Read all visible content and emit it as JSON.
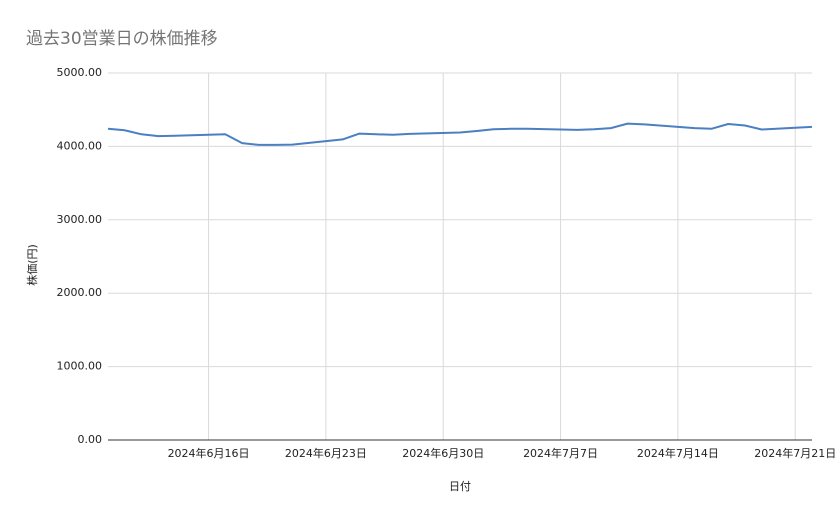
{
  "chart_data": {
    "type": "line",
    "title": "過去30営業日の株価推移",
    "x_label": "日付",
    "y_label": "株価(円)",
    "x": [
      "2024-06-10",
      "2024-06-11",
      "2024-06-12",
      "2024-06-13",
      "2024-06-14",
      "2024-06-17",
      "2024-06-18",
      "2024-06-19",
      "2024-06-20",
      "2024-06-21",
      "2024-06-24",
      "2024-06-25",
      "2024-06-26",
      "2024-06-27",
      "2024-06-28",
      "2024-07-01",
      "2024-07-02",
      "2024-07-03",
      "2024-07-04",
      "2024-07-05",
      "2024-07-08",
      "2024-07-09",
      "2024-07-10",
      "2024-07-11",
      "2024-07-12",
      "2024-07-15",
      "2024-07-16",
      "2024-07-17",
      "2024-07-18",
      "2024-07-19",
      "2024-07-22"
    ],
    "series": [
      {
        "name": "株価",
        "color": "#4a7fc1",
        "values": [
          4240,
          4220,
          4165,
          4140,
          4145,
          4165,
          4045,
          4020,
          4020,
          4025,
          4095,
          4175,
          4165,
          4160,
          4170,
          4190,
          4210,
          4235,
          4240,
          4240,
          4225,
          4235,
          4250,
          4310,
          4300,
          4250,
          4240,
          4305,
          4285,
          4230,
          4265
        ]
      }
    ],
    "xlim": [
      "2024-06-10",
      "2024-07-22"
    ],
    "xticks": [
      {
        "value": "2024-06-16",
        "label": "2024年6月16日"
      },
      {
        "value": "2024-06-23",
        "label": "2024年6月23日"
      },
      {
        "value": "2024-06-30",
        "label": "2024年6月30日"
      },
      {
        "value": "2024-07-07",
        "label": "2024年7月7日"
      },
      {
        "value": "2024-07-14",
        "label": "2024年7月14日"
      },
      {
        "value": "2024-07-21",
        "label": "2024年7月21日"
      }
    ],
    "ylim": [
      0,
      5000
    ],
    "yticks": [
      {
        "value": 0,
        "label": "0.00"
      },
      {
        "value": 1000,
        "label": "1000.00"
      },
      {
        "value": 2000,
        "label": "2000.00"
      },
      {
        "value": 3000,
        "label": "3000.00"
      },
      {
        "value": 4000,
        "label": "4000.00"
      },
      {
        "value": 5000,
        "label": "5000.00"
      }
    ],
    "grid": true
  }
}
